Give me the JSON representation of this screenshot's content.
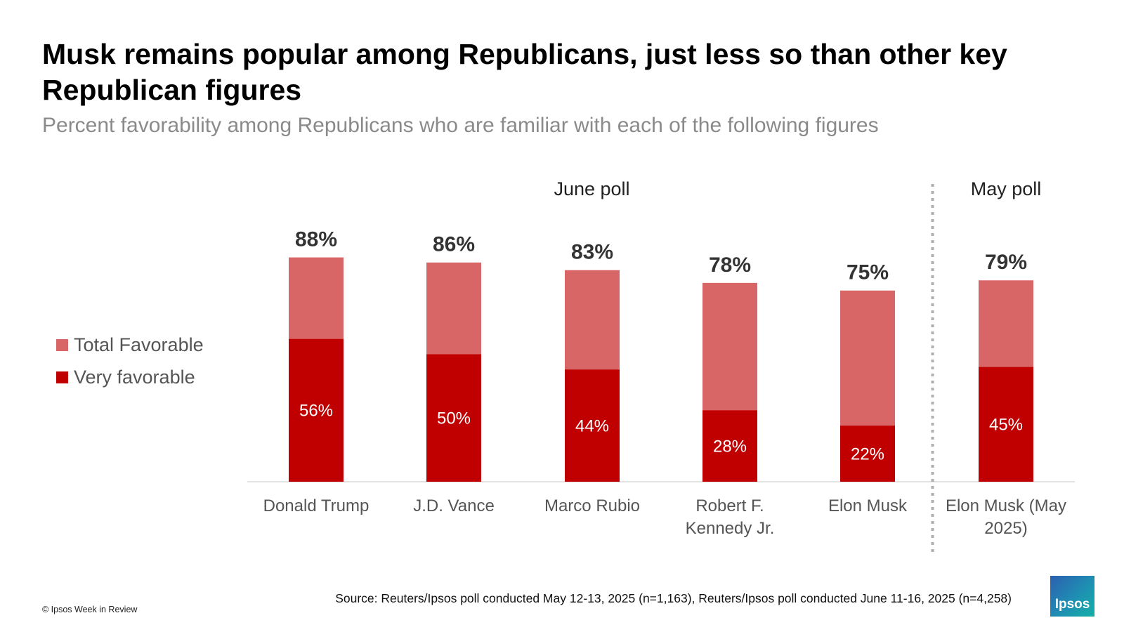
{
  "chart_data": {
    "type": "bar",
    "title": "Musk remains popular among Republicans, just less so than other key Republican figures",
    "subtitle": "Percent favorability among Republicans who are familiar with each of the following figures",
    "groups": [
      {
        "label": "June poll",
        "count": 5
      },
      {
        "label": "May poll",
        "count": 1
      }
    ],
    "categories": [
      "Donald Trump",
      "J.D. Vance",
      "Marco Rubio",
      "Robert F. Kennedy Jr.",
      "Elon Musk",
      "Elon Musk (May 2025)"
    ],
    "series": [
      {
        "name": "Total Favorable",
        "color": "#d96666",
        "values": [
          88,
          86,
          83,
          78,
          75,
          79
        ],
        "value_labels": [
          "88%",
          "86%",
          "83%",
          "78%",
          "75%",
          "79%"
        ]
      },
      {
        "name": "Very favorable",
        "color": "#c00000",
        "values": [
          56,
          50,
          44,
          28,
          22,
          45
        ],
        "value_labels": [
          "56%",
          "50%",
          "44%",
          "28%",
          "22%",
          "45%"
        ]
      }
    ],
    "ylim": [
      0,
      100
    ],
    "legend": "left",
    "source": "Source: Reuters/Ipsos poll conducted May 12-13, 2025 (n=1,163), Reuters/Ipsos poll conducted June 11-16, 2025 (n=4,258)",
    "copyright": "© Ipsos Week in Review",
    "logo": "Ipsos"
  }
}
